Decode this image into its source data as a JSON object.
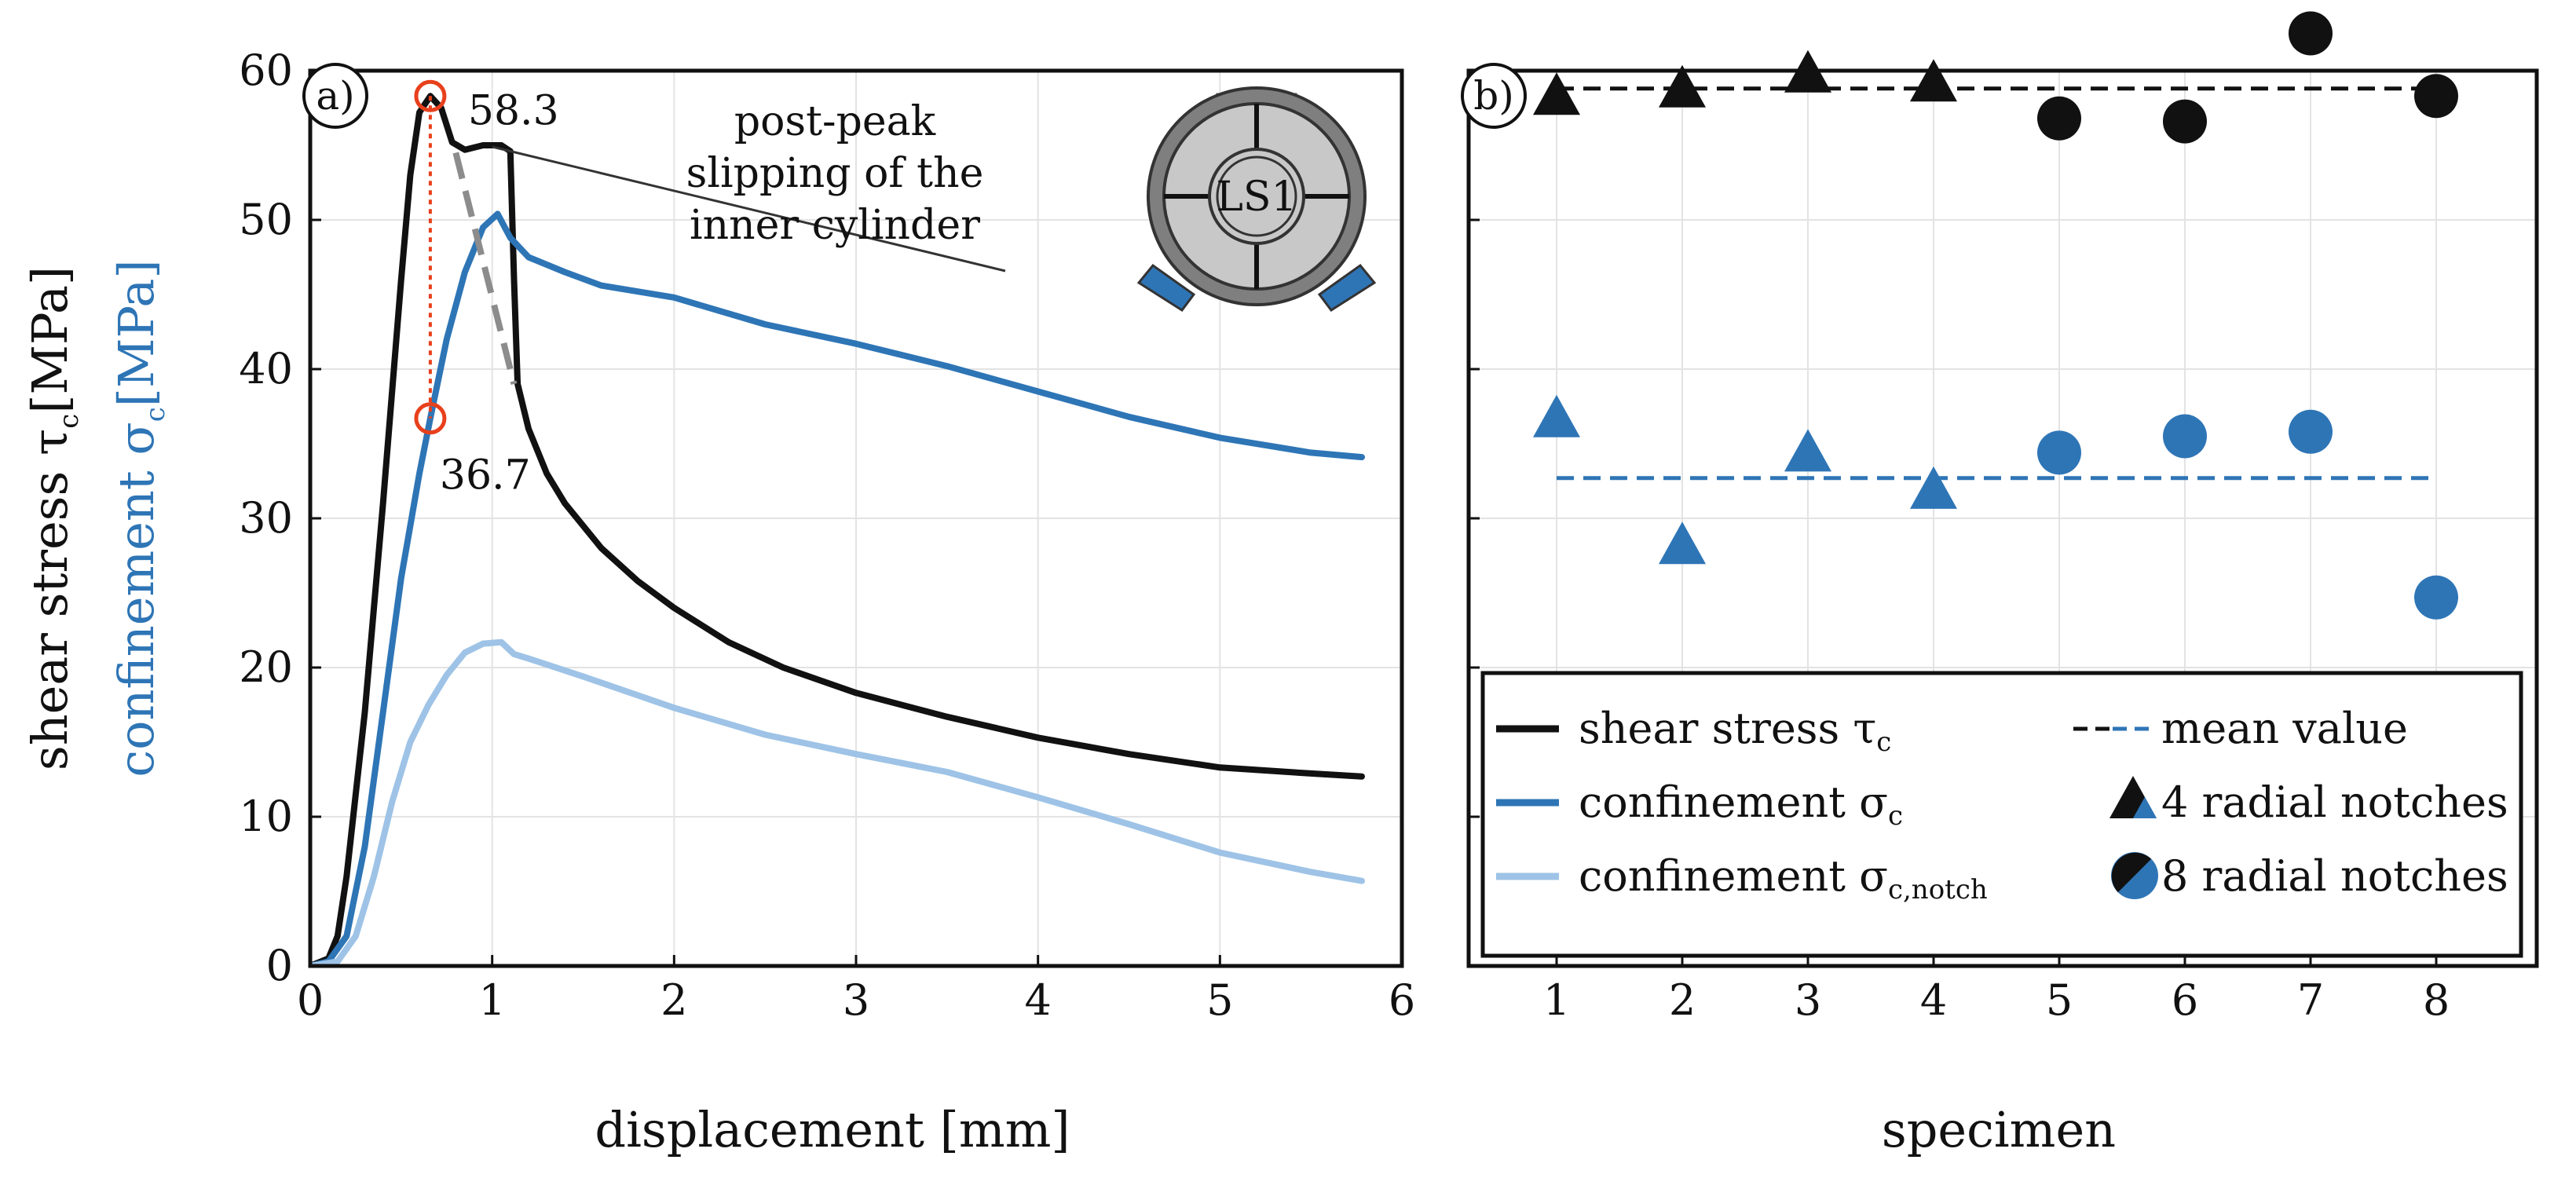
{
  "chart_data": [
    {
      "panel_label": "a)",
      "type": "line",
      "xlabel": "displacement [mm]",
      "ylabel": {
        "shear": {
          "prefix": "shear stress τ",
          "sub": "c",
          "suffix": "[MPa]"
        },
        "confinement": {
          "prefix": "confinement σ",
          "sub": "c",
          "suffix": "[MPa]"
        }
      },
      "xlim": [
        0,
        6
      ],
      "ylim": [
        0,
        60
      ],
      "xticks": [
        "0",
        "1",
        "2",
        "3",
        "4",
        "5",
        "6"
      ],
      "yticks": [
        "0",
        "10",
        "20",
        "30",
        "40",
        "50",
        "60"
      ],
      "grid": true,
      "series": [
        {
          "key": "shear",
          "color": "#111111",
          "points": [
            [
              0,
              0
            ],
            [
              0.1,
              0.5
            ],
            [
              0.15,
              2
            ],
            [
              0.2,
              6
            ],
            [
              0.3,
              17
            ],
            [
              0.4,
              31
            ],
            [
              0.5,
              46
            ],
            [
              0.55,
              53
            ],
            [
              0.6,
              57.2
            ],
            [
              0.66,
              58.3
            ],
            [
              0.72,
              57.5
            ],
            [
              0.78,
              55.2
            ],
            [
              0.85,
              54.7
            ],
            [
              0.95,
              55
            ],
            [
              1.05,
              55
            ],
            [
              1.1,
              54.6
            ],
            [
              1.12,
              46
            ],
            [
              1.14,
              39
            ],
            [
              1.2,
              36
            ],
            [
              1.3,
              33
            ],
            [
              1.4,
              31
            ],
            [
              1.6,
              28
            ],
            [
              1.8,
              25.8
            ],
            [
              2.0,
              24
            ],
            [
              2.3,
              21.7
            ],
            [
              2.6,
              20
            ],
            [
              3.0,
              18.3
            ],
            [
              3.5,
              16.7
            ],
            [
              4.0,
              15.3
            ],
            [
              4.5,
              14.2
            ],
            [
              5.0,
              13.3
            ],
            [
              5.5,
              12.9
            ],
            [
              5.78,
              12.7
            ]
          ]
        },
        {
          "key": "confinement",
          "color": "#2e75b6",
          "points": [
            [
              0,
              0
            ],
            [
              0.1,
              0.3
            ],
            [
              0.2,
              2
            ],
            [
              0.3,
              8
            ],
            [
              0.4,
              17
            ],
            [
              0.5,
              26
            ],
            [
              0.6,
              33
            ],
            [
              0.66,
              36.7
            ],
            [
              0.75,
              42
            ],
            [
              0.85,
              46.5
            ],
            [
              0.95,
              49.5
            ],
            [
              1.03,
              50.4
            ],
            [
              1.1,
              48.8
            ],
            [
              1.2,
              47.5
            ],
            [
              1.4,
              46.5
            ],
            [
              1.6,
              45.6
            ],
            [
              2.0,
              44.8
            ],
            [
              2.5,
              43
            ],
            [
              3.0,
              41.7
            ],
            [
              3.5,
              40.2
            ],
            [
              4.0,
              38.5
            ],
            [
              4.5,
              36.8
            ],
            [
              5.0,
              35.4
            ],
            [
              5.5,
              34.4
            ],
            [
              5.78,
              34.1
            ]
          ]
        },
        {
          "key": "notch",
          "color": "#9ec3e6",
          "points": [
            [
              0,
              0
            ],
            [
              0.15,
              0.3
            ],
            [
              0.25,
              2
            ],
            [
              0.35,
              6
            ],
            [
              0.45,
              11
            ],
            [
              0.55,
              15
            ],
            [
              0.65,
              17.5
            ],
            [
              0.75,
              19.5
            ],
            [
              0.85,
              21
            ],
            [
              0.95,
              21.6
            ],
            [
              1.05,
              21.7
            ],
            [
              1.12,
              20.9
            ],
            [
              1.2,
              20.6
            ],
            [
              1.5,
              19.4
            ],
            [
              2.0,
              17.3
            ],
            [
              2.5,
              15.5
            ],
            [
              3.0,
              14.2
            ],
            [
              3.5,
              13
            ],
            [
              4.0,
              11.3
            ],
            [
              4.5,
              9.5
            ],
            [
              5.0,
              7.6
            ],
            [
              5.5,
              6.3
            ],
            [
              5.78,
              5.7
            ]
          ]
        }
      ],
      "annotations": {
        "peak_value": "58.3",
        "confinement_value": "36.7",
        "peak_point": [
          0.66,
          58.3
        ],
        "confinement_point": [
          0.66,
          36.7
        ],
        "slip_line": [
          [
            0.8,
            54.5
          ],
          [
            1.12,
            39
          ]
        ],
        "note_lines": [
          "post-peak",
          "slipping of the",
          "inner cylinder"
        ],
        "inset_label": "LS1"
      },
      "legend": {
        "placement": "bottom-right (spanning both panels)",
        "entries": [
          {
            "key": "shear",
            "prefix": "shear stress τ",
            "sub": "c"
          },
          {
            "key": "confinement",
            "prefix": "confinement σ",
            "sub": "c"
          },
          {
            "key": "notch",
            "prefix": "confinement σ",
            "sub": "c,notch"
          },
          {
            "key": "mean",
            "prefix": "mean value",
            "sub": ""
          },
          {
            "key": "tri",
            "prefix": "4 radial notches",
            "sub": ""
          },
          {
            "key": "circ",
            "prefix": "8 radial notches",
            "sub": ""
          }
        ]
      },
      "colors": {
        "shear": "#111111",
        "confinement": "#2e75b6",
        "notch": "#9ec3e6",
        "marker": "#e8401c"
      }
    },
    {
      "panel_label": "b)",
      "type": "scatter",
      "xlabel": "specimen",
      "xlim": [
        0.3,
        8.8
      ],
      "ylim": [
        0,
        60
      ],
      "xticks": [
        "1",
        "2",
        "3",
        "4",
        "5",
        "6",
        "7",
        "8"
      ],
      "grid": true,
      "series": [
        {
          "key": "shear",
          "marker_by_x": {
            "1": "tri",
            "2": "tri",
            "3": "tri",
            "4": "tri",
            "5": "circ",
            "6": "circ",
            "7": "circ",
            "8": "circ"
          },
          "x": [
            1,
            2,
            3,
            4,
            5,
            6,
            7,
            8
          ],
          "y": [
            58.3,
            58.8,
            59.8,
            59.2,
            56.8,
            56.6,
            62.5,
            58.3
          ],
          "color": "#111111"
        },
        {
          "key": "confinement",
          "marker_by_x": {
            "1": "tri",
            "2": "tri",
            "3": "tri",
            "4": "tri",
            "5": "circ",
            "6": "circ",
            "7": "circ",
            "8": "circ"
          },
          "x": [
            1,
            2,
            3,
            4,
            5,
            6,
            7,
            8
          ],
          "y": [
            36.7,
            28.2,
            34.4,
            31.9,
            34.4,
            35.5,
            35.8,
            24.7
          ],
          "color": "#2e75b6"
        }
      ],
      "mean_lines": [
        {
          "key": "shear",
          "value": 58.8,
          "x_range": [
            1,
            8
          ],
          "color": "#111111"
        },
        {
          "key": "confinement",
          "value": 32.7,
          "x_range": [
            1,
            8
          ],
          "color": "#2e75b6"
        }
      ]
    }
  ]
}
